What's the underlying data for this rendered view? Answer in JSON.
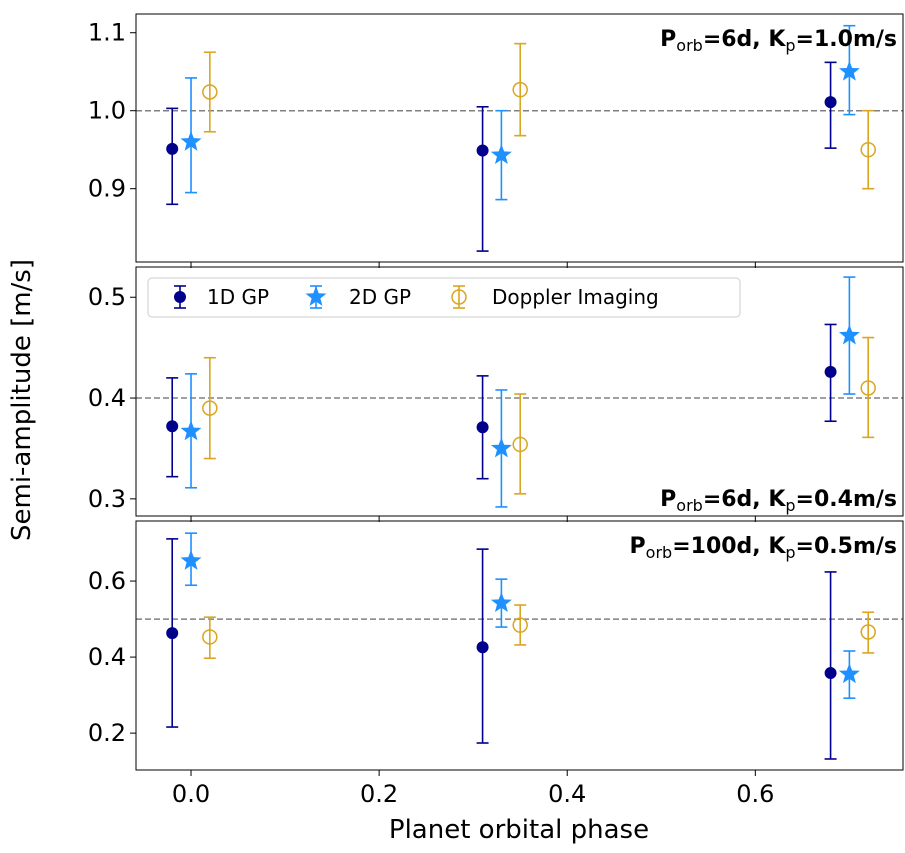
{
  "chart_data": {
    "type": "scatter",
    "xlabel": "Planet orbital phase",
    "ylabel": "Semi-amplitude [m/s]",
    "xlim": [
      -0.0585,
      0.757
    ],
    "xticks": [
      0.0,
      0.2,
      0.4,
      0.6
    ],
    "xtick_labels": [
      "0.0",
      "0.2",
      "0.4",
      "0.6"
    ],
    "grid": false,
    "legend": {
      "placement": "upper panel 2, top",
      "entries": [
        "1D GP",
        "2D GP",
        "Doppler Imaging"
      ]
    },
    "colors": {
      "1D GP": "#00008B",
      "2D GP": "#1E90FF",
      "Doppler Imaging": "#DAA520",
      "reference": "#808080"
    },
    "panels": [
      {
        "annotation": [
          "P",
          "orb",
          "=6d, K",
          "p",
          "=1.0m/s"
        ],
        "annotation_position": "top-right",
        "ylim": [
          0.806,
          1.124
        ],
        "yticks": [
          0.9,
          1.0,
          1.1
        ],
        "ytick_labels": [
          "0.9",
          "1.0",
          "1.1"
        ],
        "reference_line": 1.0,
        "series": [
          {
            "name": "1D GP",
            "x": [
              -0.02,
              0.31,
              0.68
            ],
            "y": [
              0.951,
              0.949,
              1.011
            ],
            "ylow": [
              0.88,
              0.82,
              0.952
            ],
            "yhigh": [
              1.003,
              1.005,
              1.062
            ]
          },
          {
            "name": "2D GP",
            "x": [
              0.0,
              0.33,
              0.7
            ],
            "y": [
              0.96,
              0.943,
              1.05
            ],
            "ylow": [
              0.895,
              0.886,
              0.995
            ],
            "yhigh": [
              1.042,
              1.0,
              1.109
            ]
          },
          {
            "name": "Doppler Imaging",
            "x": [
              0.02,
              0.35,
              0.72
            ],
            "y": [
              1.024,
              1.027,
              0.95
            ],
            "ylow": [
              0.973,
              0.968,
              0.9
            ],
            "yhigh": [
              1.075,
              1.086,
              1.0
            ]
          }
        ]
      },
      {
        "annotation": [
          "P",
          "orb",
          "=6d, K",
          "p",
          "=0.4m/s"
        ],
        "annotation_position": "bottom-right",
        "ylim": [
          0.283,
          0.53
        ],
        "yticks": [
          0.3,
          0.4,
          0.5
        ],
        "ytick_labels": [
          "0.3",
          "0.4",
          "0.5"
        ],
        "reference_line": 0.4,
        "series": [
          {
            "name": "1D GP",
            "x": [
              -0.02,
              0.31,
              0.68
            ],
            "y": [
              0.372,
              0.371,
              0.426
            ],
            "ylow": [
              0.322,
              0.32,
              0.377
            ],
            "yhigh": [
              0.42,
              0.422,
              0.473
            ]
          },
          {
            "name": "2D GP",
            "x": [
              0.0,
              0.33,
              0.7
            ],
            "y": [
              0.367,
              0.35,
              0.462
            ],
            "ylow": [
              0.311,
              0.292,
              0.404
            ],
            "yhigh": [
              0.424,
              0.408,
              0.52
            ]
          },
          {
            "name": "Doppler Imaging",
            "x": [
              0.02,
              0.35,
              0.72
            ],
            "y": [
              0.39,
              0.354,
              0.41
            ],
            "ylow": [
              0.34,
              0.305,
              0.361
            ],
            "yhigh": [
              0.44,
              0.404,
              0.46
            ]
          }
        ]
      },
      {
        "annotation": [
          "P",
          "orb",
          "=100d, K",
          "p",
          "=0.5m/s"
        ],
        "annotation_position": "top-right",
        "ylim": [
          0.103,
          0.758
        ],
        "yticks": [
          0.2,
          0.4,
          0.6
        ],
        "ytick_labels": [
          "0.2",
          "0.4",
          "0.6"
        ],
        "reference_line": 0.5,
        "series": [
          {
            "name": "1D GP",
            "x": [
              -0.02,
              0.31,
              0.68
            ],
            "y": [
              0.463,
              0.426,
              0.358
            ],
            "ylow": [
              0.216,
              0.174,
              0.132
            ],
            "yhigh": [
              0.711,
              0.684,
              0.624
            ]
          },
          {
            "name": "2D GP",
            "x": [
              0.0,
              0.33,
              0.7
            ],
            "y": [
              0.653,
              0.542,
              0.355
            ],
            "ylow": [
              0.589,
              0.479,
              0.292
            ],
            "yhigh": [
              0.726,
              0.605,
              0.416
            ]
          },
          {
            "name": "Doppler Imaging",
            "x": [
              0.02,
              0.35,
              0.72
            ],
            "y": [
              0.453,
              0.484,
              0.466
            ],
            "ylow": [
              0.397,
              0.432,
              0.411
            ],
            "yhigh": [
              0.505,
              0.537,
              0.518
            ]
          }
        ]
      }
    ]
  }
}
